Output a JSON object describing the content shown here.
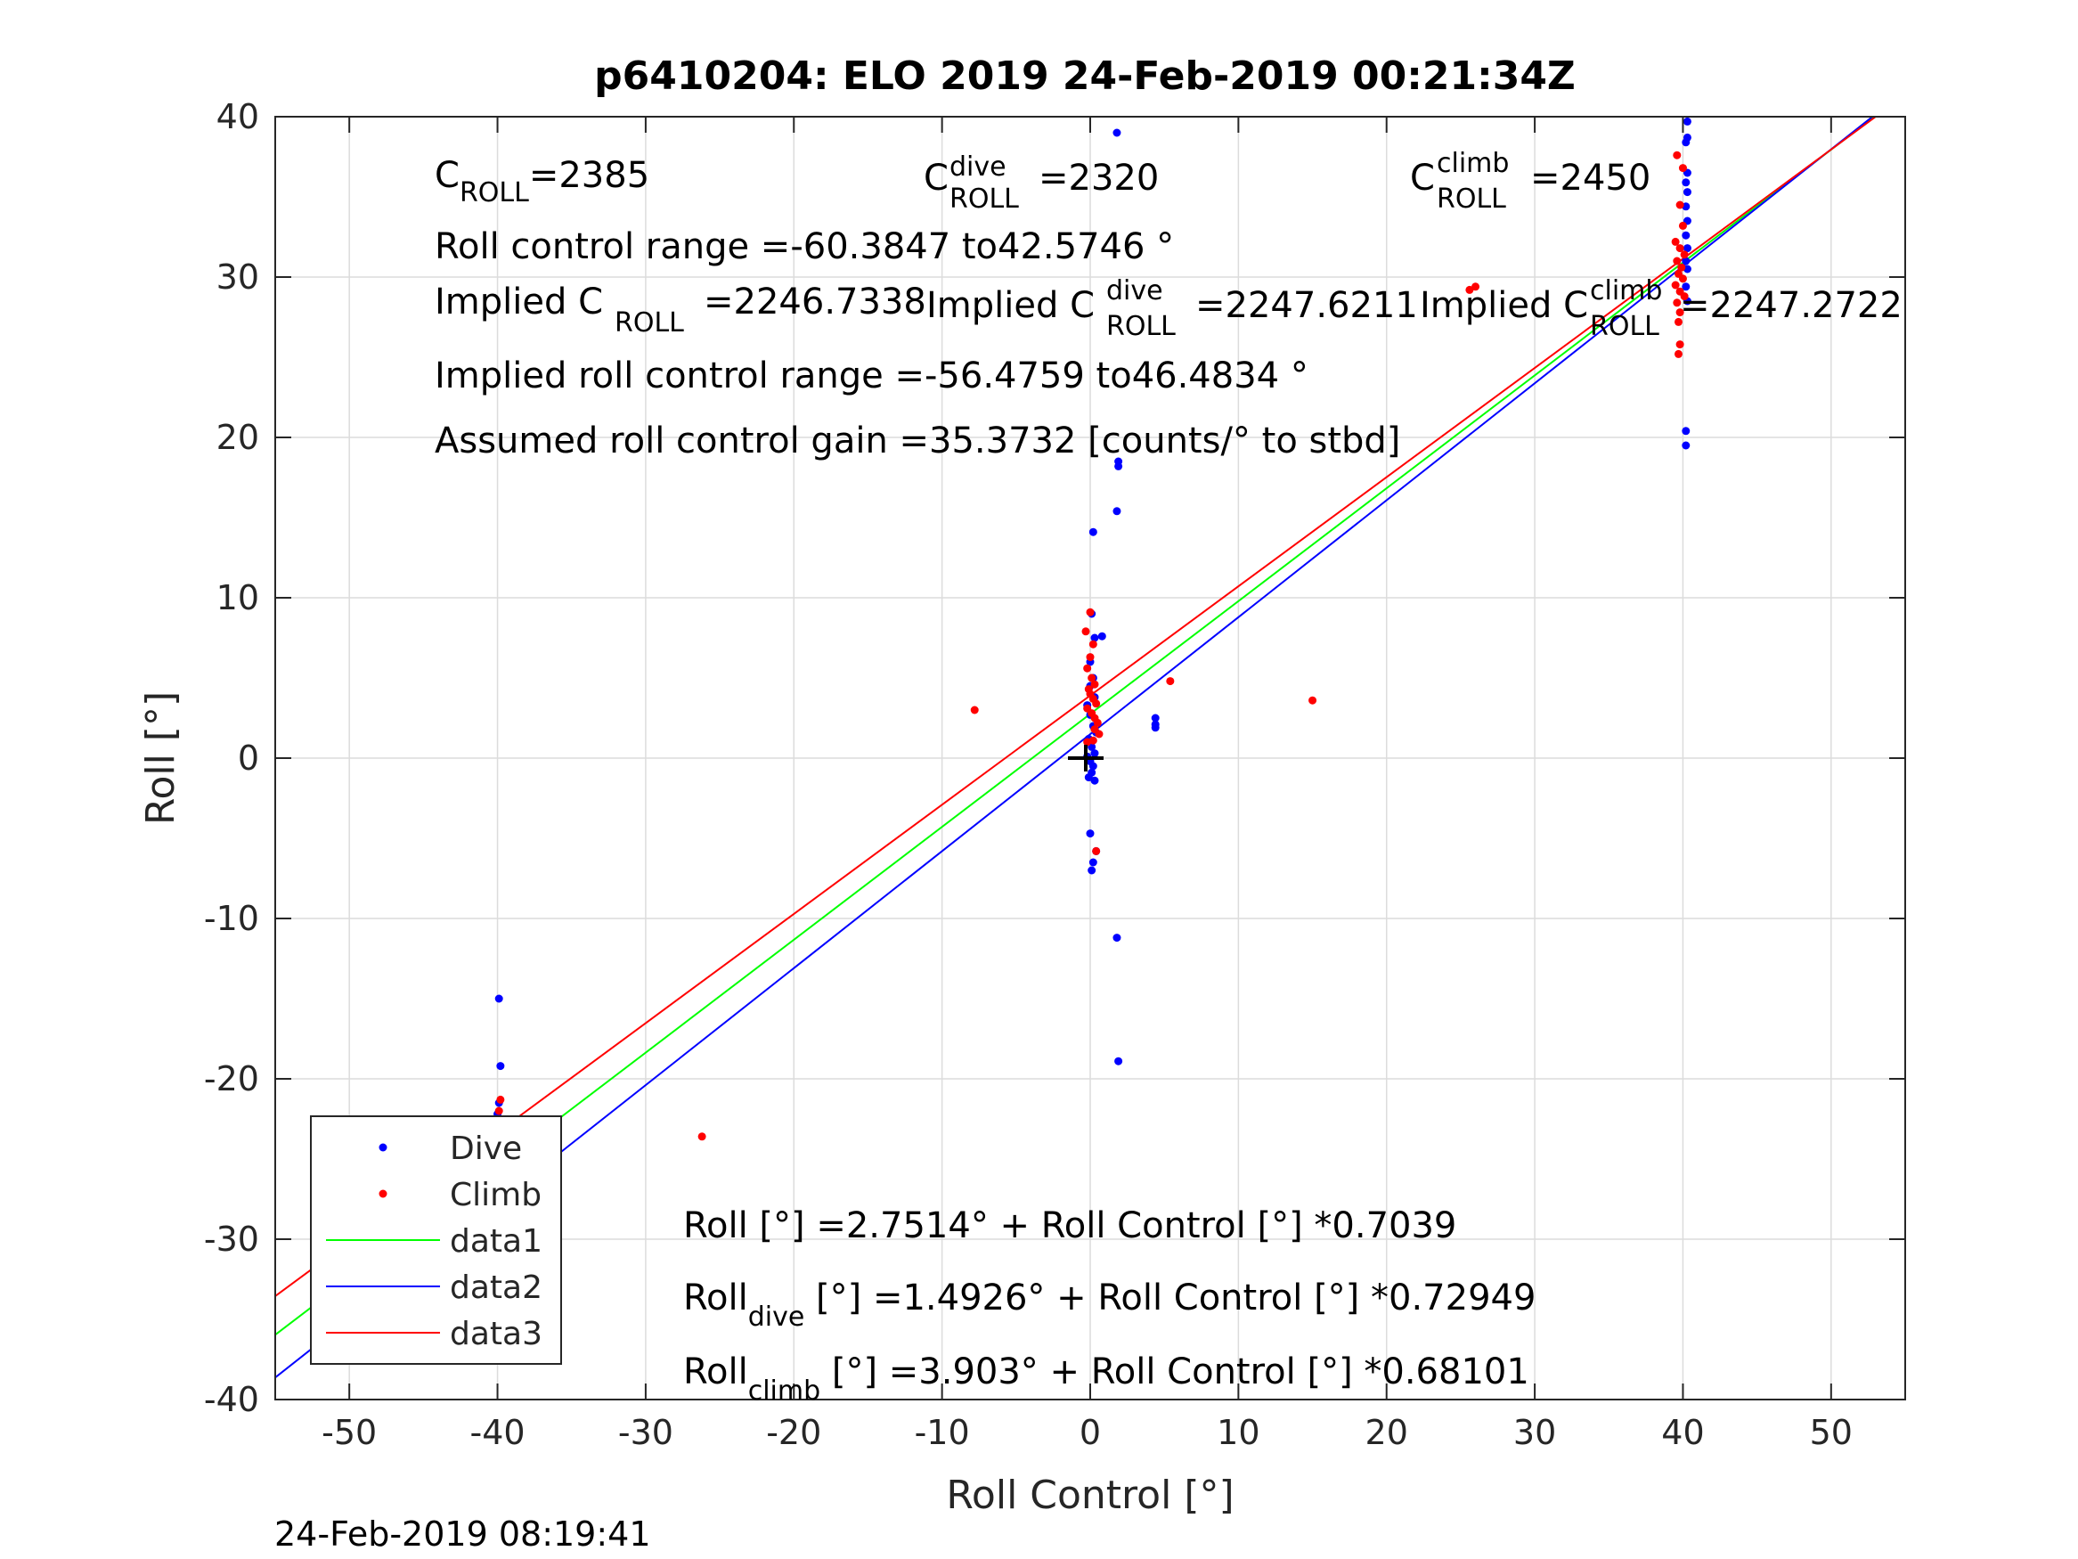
{
  "chart_data": {
    "type": "scatter",
    "title": "p6410204: ELO 2019 24-Feb-2019 00:21:34Z",
    "xlabel": "Roll Control [°]",
    "ylabel": "Roll [°]",
    "xlim": [
      -55,
      55
    ],
    "ylim": [
      -40,
      40
    ],
    "x_ticks": [
      -50,
      -40,
      -30,
      -20,
      -10,
      0,
      10,
      20,
      30,
      40,
      50
    ],
    "y_ticks": [
      -40,
      -30,
      -20,
      -10,
      0,
      10,
      20,
      30,
      40
    ],
    "x_tick_labels": [
      "-50",
      "-40",
      "-30",
      "-20",
      "-10",
      "0",
      "10",
      "20",
      "30",
      "40",
      "50"
    ],
    "y_tick_labels": [
      "-40",
      "-30",
      "-20",
      "-10",
      "0",
      "10",
      "20",
      "30",
      "40"
    ],
    "grid": true,
    "legend_position": "bottom-left",
    "colors": {
      "dive": "#0000ff",
      "climb": "#ff0000",
      "data1": "#00ff00",
      "data2": "#0000ff",
      "data3": "#ff0000",
      "axes": "#262626"
    },
    "series": [
      {
        "name": "Dive",
        "kind": "points",
        "color": "#0000ff",
        "points": [
          [
            -39.9,
            -15.0
          ],
          [
            -39.8,
            -19.2
          ],
          [
            -39.9,
            -21.5
          ],
          [
            -40.0,
            -22.2
          ],
          [
            -39.7,
            -22.8
          ],
          [
            -39.9,
            -23.6
          ],
          [
            -40.0,
            -24.0
          ],
          [
            -39.8,
            -25.0
          ],
          [
            -39.9,
            -25.6
          ],
          [
            -40.1,
            -26.3
          ],
          [
            -39.8,
            -26.9
          ],
          [
            -40.0,
            -27.5
          ],
          [
            -39.8,
            -28.2
          ],
          [
            -39.9,
            -28.8
          ],
          [
            1.8,
            39.0
          ],
          [
            1.9,
            18.5
          ],
          [
            1.9,
            18.2
          ],
          [
            1.8,
            15.4
          ],
          [
            0.2,
            14.1
          ],
          [
            0.1,
            9.0
          ],
          [
            0.3,
            7.5
          ],
          [
            0.8,
            7.6
          ],
          [
            0.0,
            6.0
          ],
          [
            0.2,
            5.0
          ],
          [
            0.0,
            4.5
          ],
          [
            0.3,
            3.8
          ],
          [
            -0.2,
            3.3
          ],
          [
            0.0,
            2.7
          ],
          [
            0.2,
            2.0
          ],
          [
            0.4,
            1.6
          ],
          [
            -0.1,
            1.2
          ],
          [
            0.1,
            0.7
          ],
          [
            0.3,
            0.3
          ],
          [
            -0.2,
            0.1
          ],
          [
            0.0,
            -0.2
          ],
          [
            0.2,
            -0.5
          ],
          [
            0.1,
            -0.9
          ],
          [
            -0.1,
            -1.2
          ],
          [
            0.3,
            -1.4
          ],
          [
            0.0,
            -4.7
          ],
          [
            0.4,
            -5.8
          ],
          [
            0.2,
            -6.5
          ],
          [
            0.1,
            -7.0
          ],
          [
            1.8,
            -11.2
          ],
          [
            1.9,
            -18.9
          ],
          [
            4.4,
            2.5
          ],
          [
            4.4,
            2.1
          ],
          [
            4.4,
            1.9
          ],
          [
            40.3,
            39.7
          ],
          [
            40.3,
            38.7
          ],
          [
            40.2,
            38.4
          ],
          [
            40.3,
            36.5
          ],
          [
            40.2,
            35.9
          ],
          [
            40.3,
            35.3
          ],
          [
            40.2,
            34.4
          ],
          [
            40.3,
            33.5
          ],
          [
            40.2,
            32.6
          ],
          [
            40.3,
            31.8
          ],
          [
            40.2,
            31.0
          ],
          [
            40.3,
            30.5
          ],
          [
            40.2,
            29.4
          ],
          [
            40.3,
            28.5
          ],
          [
            40.2,
            20.4
          ],
          [
            40.2,
            19.5
          ]
        ]
      },
      {
        "name": "Climb",
        "kind": "points",
        "color": "#ff0000",
        "points": [
          [
            -39.8,
            -21.3
          ],
          [
            -39.9,
            -22.0
          ],
          [
            -40.1,
            -22.6
          ],
          [
            -39.8,
            -23.0
          ],
          [
            -40.0,
            -23.4
          ],
          [
            -39.7,
            -23.8
          ],
          [
            -39.9,
            -24.2
          ],
          [
            -40.1,
            -24.7
          ],
          [
            -39.8,
            -25.4
          ],
          [
            -26.2,
            -23.6
          ],
          [
            -7.8,
            3.0
          ],
          [
            0.0,
            9.1
          ],
          [
            -0.3,
            7.9
          ],
          [
            0.2,
            7.1
          ],
          [
            0.0,
            6.3
          ],
          [
            -0.2,
            5.6
          ],
          [
            0.1,
            5.0
          ],
          [
            0.3,
            4.6
          ],
          [
            -0.1,
            4.3
          ],
          [
            0.0,
            4.0
          ],
          [
            0.2,
            3.7
          ],
          [
            0.4,
            3.4
          ],
          [
            -0.2,
            3.1
          ],
          [
            0.1,
            2.8
          ],
          [
            0.3,
            2.5
          ],
          [
            0.5,
            2.2
          ],
          [
            0.3,
            1.8
          ],
          [
            0.6,
            1.5
          ],
          [
            0.2,
            1.1
          ],
          [
            -0.2,
            1.0
          ],
          [
            0.4,
            -5.8
          ],
          [
            5.4,
            4.8
          ],
          [
            15.0,
            3.6
          ],
          [
            26.0,
            29.4
          ],
          [
            25.6,
            29.2
          ],
          [
            39.6,
            37.6
          ],
          [
            40.0,
            36.8
          ],
          [
            39.8,
            34.5
          ],
          [
            40.0,
            33.2
          ],
          [
            39.5,
            32.2
          ],
          [
            39.8,
            31.8
          ],
          [
            40.1,
            31.4
          ],
          [
            39.6,
            31.0
          ],
          [
            39.9,
            30.6
          ],
          [
            39.7,
            30.2
          ],
          [
            40.0,
            29.9
          ],
          [
            39.5,
            29.5
          ],
          [
            39.8,
            29.1
          ],
          [
            40.1,
            28.8
          ],
          [
            39.6,
            28.4
          ],
          [
            39.8,
            27.8
          ],
          [
            39.7,
            27.2
          ],
          [
            39.8,
            25.8
          ],
          [
            39.7,
            25.2
          ]
        ]
      },
      {
        "name": "data1",
        "kind": "line",
        "color": "#00ff00",
        "slope": 0.7039,
        "intercept": 2.7514
      },
      {
        "name": "data2",
        "kind": "line",
        "color": "#0000ff",
        "slope": 0.72949,
        "intercept": 1.4926
      },
      {
        "name": "data3",
        "kind": "line",
        "color": "#ff0000",
        "slope": 0.68101,
        "intercept": 3.903
      }
    ],
    "annotations": {
      "c_roll_label": "C",
      "c_roll_sub": "ROLL",
      "c_roll_value": "=2385",
      "c_dive_label": "C",
      "c_dive_sup": "dive",
      "c_dive_sub": "ROLL",
      "c_dive_value": "=2320",
      "c_climb_label": "C",
      "c_climb_sup": "climb",
      "c_climb_sub": "ROLL",
      "c_climb_value": "=2450",
      "roll_control_range": "Roll control range =-60.3847 to42.5746 °",
      "implied_c_roll_label": "Implied C",
      "implied_c_roll_sub": "ROLL",
      "implied_c_roll_value": "=2246.7338",
      "implied_dive_label": "Implied C",
      "implied_dive_sup": "dive",
      "implied_dive_sub": "ROLL",
      "implied_dive_value": "=2247.6211",
      "implied_climb_label": "Implied C",
      "implied_climb_sup": "climb",
      "implied_climb_sub": "ROLL",
      "implied_climb_value": "=2247.2722",
      "implied_range": "Implied roll control range =-56.4759 to46.4834 °",
      "assumed_gain": "Assumed roll control gain =35.3732 [counts/° to stbd]",
      "fit_all": "Roll [°] =2.7514° + Roll Control [°] *0.7039",
      "fit_dive_label": "Roll",
      "fit_dive_sub": "dive",
      "fit_dive_rest": " [°] =1.4926° + Roll Control [°] *0.72949",
      "fit_climb_label": "Roll",
      "fit_climb_sub": "climb",
      "fit_climb_rest": " [°] =3.903° + Roll Control [°] *0.68101"
    },
    "legend": [
      "Dive",
      "Climb",
      "data1",
      "data2",
      "data3"
    ],
    "footer": "24-Feb-2019 08:19:41"
  }
}
